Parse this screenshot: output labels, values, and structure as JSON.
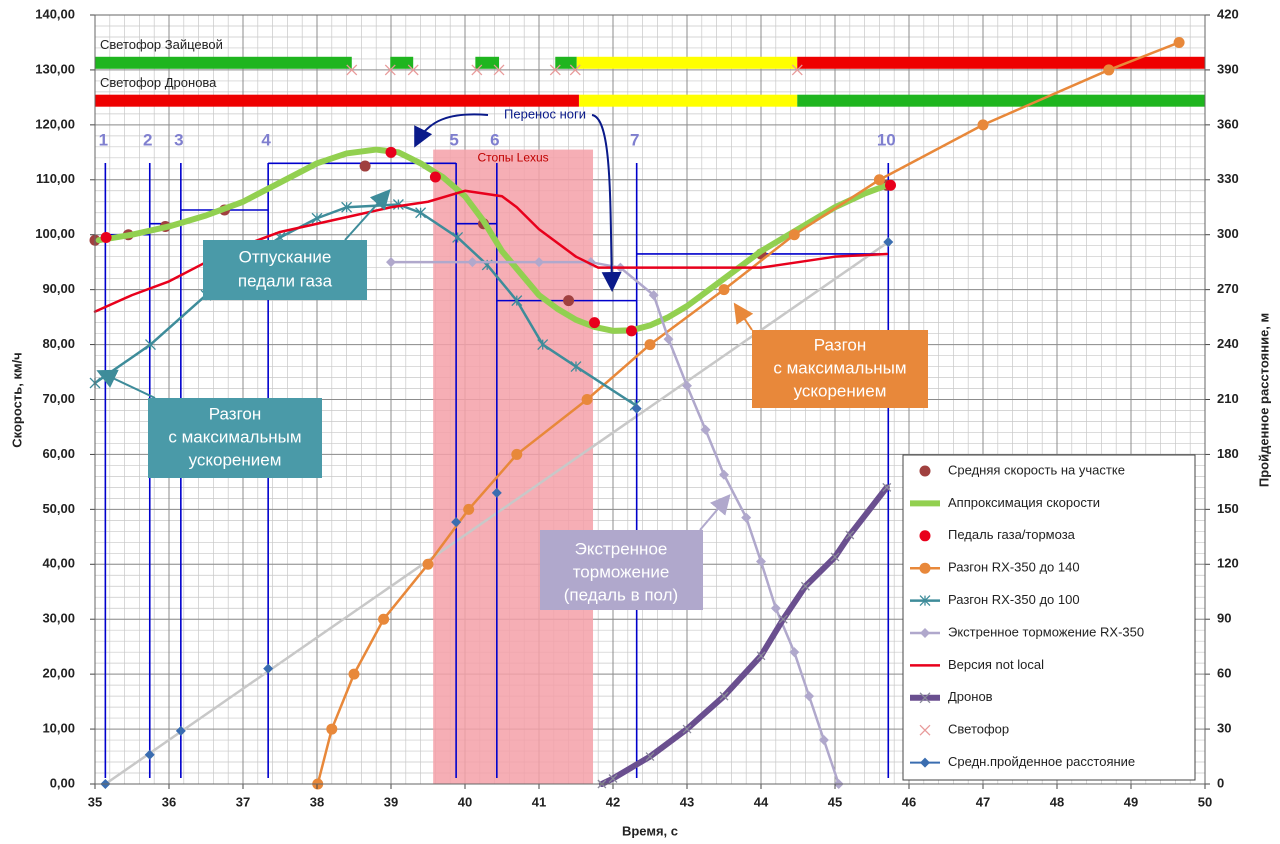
{
  "chart_data": {
    "type": "line",
    "xlabel": "Время, с",
    "ylabel": "Скорость, км/ч",
    "y2label": "Пройденное расстояние, м",
    "xlim": [
      35,
      50
    ],
    "xticks": [
      35,
      36,
      37,
      38,
      39,
      40,
      41,
      42,
      43,
      44,
      45,
      46,
      47,
      48,
      49,
      50
    ],
    "ylim": [
      0,
      140
    ],
    "yticks": [
      {
        "value": 0,
        "label": "0,00"
      },
      {
        "value": 10,
        "label": "10,00"
      },
      {
        "value": 20,
        "label": "20,00"
      },
      {
        "value": 30,
        "label": "30,00"
      },
      {
        "value": 40,
        "label": "40,00"
      },
      {
        "value": 50,
        "label": "50,00"
      },
      {
        "value": 60,
        "label": "60,00"
      },
      {
        "value": 70,
        "label": "70,00"
      },
      {
        "value": 80,
        "label": "80,00"
      },
      {
        "value": 90,
        "label": "90,00"
      },
      {
        "value": 100,
        "label": "100,00"
      },
      {
        "value": 110,
        "label": "110,00"
      },
      {
        "value": 120,
        "label": "120,00"
      },
      {
        "value": 130,
        "label": "130,00"
      },
      {
        "value": 140,
        "label": "140,00"
      }
    ],
    "y2lim": [
      0,
      420
    ],
    "y2ticks": [
      0,
      30,
      60,
      90,
      120,
      150,
      180,
      210,
      240,
      270,
      300,
      330,
      360,
      390,
      420
    ],
    "grid": true,
    "minor_grid_x_step": 0.2,
    "minor_grid_y_step": 2,
    "legend": "lower right",
    "series": [
      {
        "name": "Средняя скорость на участке",
        "color": "#a0403f",
        "line": false,
        "marker": "circle",
        "x": [
          35.0,
          35.45,
          35.95,
          36.75,
          38.65,
          40.25,
          41.4,
          44.0,
          45.7
        ],
        "values": [
          99,
          100,
          101.5,
          104.5,
          112.5,
          102,
          88,
          96.5,
          109
        ]
      },
      {
        "name": "Аппроксимация скорости",
        "color": "#92d050",
        "line": true,
        "width": 6,
        "marker": null,
        "x": [
          35.05,
          35.5,
          36.0,
          36.5,
          37.0,
          37.5,
          38.0,
          38.4,
          38.8,
          39.1,
          39.4,
          39.7,
          40.0,
          40.25,
          40.5,
          40.75,
          41.0,
          41.25,
          41.5,
          41.75,
          42.0,
          42.25,
          42.5,
          42.75,
          43.0,
          43.5,
          44.0,
          44.5,
          45.0,
          45.4,
          45.7
        ],
        "values": [
          99,
          100,
          101.5,
          103.5,
          106,
          109.5,
          113,
          114.8,
          115.5,
          115,
          113,
          110.5,
          107,
          102.5,
          97,
          93,
          89,
          86.5,
          84.5,
          83.2,
          82.5,
          82.6,
          83.5,
          85,
          87,
          92,
          97,
          101,
          105,
          107.5,
          109
        ]
      },
      {
        "name": "Педаль газа/тормоза",
        "color": "#e8001c",
        "line": false,
        "marker": "circle",
        "x": [
          35.15,
          39.0,
          39.6,
          41.75,
          42.25,
          45.75
        ],
        "values": [
          99.5,
          115,
          110.5,
          84,
          82.5,
          109
        ]
      },
      {
        "name": "Разгон RX-350 до 140",
        "color": "#e8883a",
        "line": true,
        "width": 2.5,
        "marker": "circle",
        "x": [
          38.01,
          38.2,
          38.5,
          38.9,
          39.5,
          40.05,
          40.7,
          41.65,
          42.5,
          43.5,
          44.45,
          45.6,
          47.0,
          48.7,
          49.65
        ],
        "values": [
          0,
          10,
          20,
          30,
          40,
          50,
          60,
          70,
          80,
          90,
          100,
          110,
          120,
          130,
          135
        ]
      },
      {
        "name": "Разгон RX-350 до 100",
        "color": "#3e8c9a",
        "line": true,
        "width": 2.5,
        "marker": "asterisk",
        "x": [
          35.0,
          35.75,
          36.5,
          37.0,
          37.5,
          38.0,
          38.4,
          39.1,
          39.4,
          39.9,
          40.3,
          40.7,
          41.05,
          41.5,
          42.3
        ],
        "values": [
          73,
          80,
          89,
          95,
          99.5,
          103,
          105,
          105.5,
          104,
          99.5,
          94.5,
          88,
          80,
          76,
          69
        ]
      },
      {
        "name": "Экстренное торможение RX-350",
        "color": "#b0a8cc",
        "line": true,
        "width": 2.5,
        "marker": "diamond",
        "x": [
          39.0,
          40.1,
          41.0,
          41.7,
          42.1,
          42.55,
          42.75,
          43.0,
          43.25,
          43.5,
          43.8,
          44.0,
          44.2,
          44.45,
          44.65,
          44.85,
          45.05
        ],
        "values": [
          95,
          95,
          95,
          95,
          94,
          89,
          81,
          72.5,
          64.5,
          56.3,
          48.5,
          40.5,
          32,
          24,
          16,
          8,
          0
        ]
      },
      {
        "name": "Версия not local",
        "color": "#e8001c",
        "line": true,
        "width": 2.5,
        "marker": null,
        "x": [
          35.0,
          35.5,
          36.0,
          36.5,
          37.0,
          37.5,
          38.0,
          38.5,
          39.0,
          39.5,
          40.0,
          40.5,
          40.7,
          41.0,
          41.5,
          41.8,
          42.5,
          44.0,
          44.5,
          45.0,
          45.7
        ],
        "values": [
          86,
          89,
          91.5,
          95,
          98,
          100.5,
          102,
          103.5,
          105,
          106,
          108,
          107,
          105,
          101,
          96,
          94,
          94,
          94,
          95,
          96,
          96.5
        ]
      },
      {
        "name": "Дронов",
        "color": "#6a4f8f",
        "line": true,
        "width": 6,
        "marker": "x",
        "marker_color": "#8a8a9a",
        "axis": "y2",
        "x": [
          41.85,
          42.0,
          42.5,
          43.0,
          43.5,
          44.0,
          44.3,
          44.6,
          45.0,
          45.2,
          45.7
        ],
        "values": [
          0,
          3,
          15,
          30,
          48,
          70,
          90,
          108,
          124,
          136,
          162
        ]
      },
      {
        "name": "Светофор",
        "color": "#e89a9a",
        "line": false,
        "marker": "x",
        "x": [
          38.47,
          38.99,
          39.3,
          40.16,
          40.46,
          41.22,
          41.49,
          44.49
        ],
        "values": [
          130,
          130,
          130,
          130,
          130,
          130,
          130,
          130
        ]
      },
      {
        "name": "Средн.пройденное расстояние",
        "color": "#3a6db0",
        "line": false,
        "legend_line": true,
        "marker": "diamond",
        "axis": "y2",
        "x": [
          35.14,
          35.74,
          36.16,
          37.34,
          39.88,
          40.43,
          42.32,
          45.72
        ],
        "values": [
          0,
          16,
          29,
          63,
          143,
          159,
          205,
          296
        ]
      }
    ],
    "reference_line": {
      "color": "#c8c8c8",
      "axis": "y2",
      "x": [
        35.14,
        45.72
      ],
      "values": [
        0,
        296
      ]
    },
    "traffic_lights": [
      {
        "label": "Светофор Зайцевой",
        "value": 131.3,
        "segments": [
          {
            "start": 35,
            "end": 38.47,
            "color": "#1fb51f"
          },
          {
            "start": 38.99,
            "end": 39.3,
            "color": "#1fb51f"
          },
          {
            "start": 40.14,
            "end": 40.46,
            "color": "#1fb51f"
          },
          {
            "start": 41.22,
            "end": 41.51,
            "color": "#1fb51f"
          },
          {
            "start": 41.51,
            "end": 44.49,
            "color": "#ffff00"
          },
          {
            "start": 44.49,
            "end": 50,
            "color": "#ee0000"
          }
        ]
      },
      {
        "label": "Светофор Дронова",
        "value": 124.4,
        "segments": [
          {
            "start": 35,
            "end": 41.54,
            "color": "#ee0000"
          },
          {
            "start": 41.54,
            "end": 44.49,
            "color": "#ffff00"
          },
          {
            "start": 44.49,
            "end": 50,
            "color": "#1fb51f"
          }
        ]
      }
    ],
    "highlight": {
      "label": "Стопы Lexus",
      "start": 39.57,
      "end": 41.73,
      "top": 115.5,
      "color": "#f4a0a8"
    },
    "markers": [
      {
        "label": "1",
        "x": 35.14
      },
      {
        "label": "2",
        "x": 35.74
      },
      {
        "label": "3",
        "x": 36.16
      },
      {
        "label": "4",
        "x": 37.34
      },
      {
        "label": "5",
        "x": 39.88
      },
      {
        "label": "6",
        "x": 40.43
      },
      {
        "label": "7",
        "x": 42.32
      },
      {
        "label": "10",
        "x": 45.72
      }
    ],
    "segments": [
      {
        "start": 35.14,
        "end": 35.74,
        "value": 100
      },
      {
        "start": 35.74,
        "end": 36.16,
        "value": 102
      },
      {
        "start": 36.16,
        "end": 37.34,
        "value": 104.5
      },
      {
        "start": 37.34,
        "end": 39.88,
        "value": 113
      },
      {
        "start": 39.88,
        "end": 40.43,
        "value": 102
      },
      {
        "start": 40.43,
        "end": 42.32,
        "value": 88
      },
      {
        "start": 42.32,
        "end": 45.72,
        "value": 96.5
      }
    ],
    "annotations": [
      {
        "lines": [
          "Перенос ноги"
        ]
      },
      {
        "lines": [
          "Отпускание",
          "педали газа"
        ]
      },
      {
        "lines": [
          "Разгон",
          "с максимальным",
          "ускорением"
        ]
      },
      {
        "lines": [
          "Разгон",
          "с максимальным",
          "ускорением"
        ]
      },
      {
        "lines": [
          "Экстренное",
          "торможение",
          "(педаль в пол)"
        ]
      }
    ]
  }
}
